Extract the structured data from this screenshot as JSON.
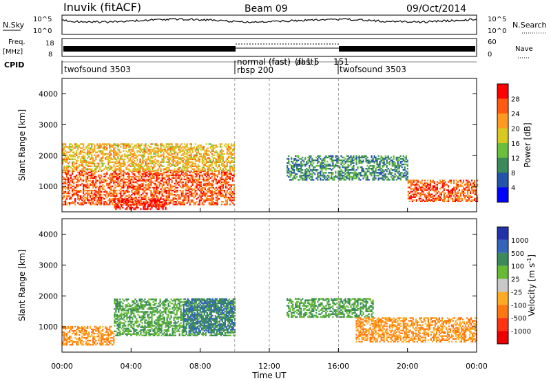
{
  "header": {
    "station": "Inuvik (fitACF)",
    "beam": "Beam 09",
    "date": "09/Oct/2014"
  },
  "top_panels": {
    "noise": {
      "left_label": "N.Sky",
      "right_label": "N.Search",
      "ticks": [
        "10^5",
        "10^0"
      ]
    },
    "freq": {
      "left_label": "Freq.",
      "unit": "[MHz]",
      "left_ticks": [
        "18",
        "8"
      ],
      "right_label": "Nave",
      "right_ticks": [
        "60",
        "0"
      ]
    },
    "cpid": {
      "label": "CPID",
      "segments": [
        "twofsound 3503",
        "normal (fast)",
        "rbsp 200",
        "(fast)",
        "al 1 5",
        "(fast)",
        "151",
        "twofsound 3503"
      ]
    }
  },
  "x_axis": {
    "label": "Time UT",
    "ticks": [
      "00:00",
      "04:00",
      "08:00",
      "12:00",
      "16:00",
      "20:00",
      "00:00"
    ]
  },
  "power_panel": {
    "ylabel": "Slant Range [km]",
    "yticks": [
      "1000",
      "2000",
      "3000",
      "4000"
    ],
    "colorbar_title": "Power [dB]",
    "colorbar_ticks": [
      "4",
      "8",
      "12",
      "16",
      "20",
      "24",
      "28"
    ],
    "colors": [
      "#0000ff",
      "#2255aa",
      "#3a8a5a",
      "#6bbf3a",
      "#d8c820",
      "#ff9a20",
      "#ff5a10",
      "#ff0000"
    ]
  },
  "velocity_panel": {
    "ylabel": "Slant Range [km]",
    "yticks": [
      "1000",
      "2000",
      "3000",
      "4000"
    ],
    "colorbar_title": "Velocity [m s",
    "colorbar_exp": "-1",
    "colorbar_close": "]",
    "colorbar_ticks": [
      "1000",
      "500",
      "100",
      "25",
      "-25",
      "-100",
      "-500",
      "-1000"
    ],
    "colors": [
      "#2233aa",
      "#3366bb",
      "#3a8a5a",
      "#66bb33",
      "#c8c8c8",
      "#ffaa22",
      "#ff7711",
      "#ff3311",
      "#ee0000"
    ]
  },
  "chart_data": {
    "type": "heatmap",
    "x_range_hours": [
      0,
      24
    ],
    "y_range_km": [
      180,
      4500
    ],
    "mode_change_hours": [
      10,
      12,
      16
    ],
    "power_bands_db": [
      {
        "t0": 0,
        "t1": 10,
        "r_lo": 400,
        "r_hi": 1500,
        "value": 26
      },
      {
        "t0": 3,
        "t1": 6,
        "r_lo": 250,
        "r_hi": 600,
        "value": 30
      },
      {
        "t0": 0,
        "t1": 10,
        "r_lo": 1500,
        "r_hi": 2400,
        "value": 20
      },
      {
        "t0": 13,
        "t1": 20,
        "r_lo": 1200,
        "r_hi": 2000,
        "value": 10
      },
      {
        "t0": 20,
        "t1": 24,
        "r_lo": 500,
        "r_hi": 1200,
        "value": 26
      }
    ],
    "velocity_bands_ms": [
      {
        "t0": 3,
        "t1": 10,
        "r_lo": 700,
        "r_hi": 1900,
        "value": 100
      },
      {
        "t0": 7,
        "t1": 10,
        "r_lo": 800,
        "r_hi": 1900,
        "value": 500
      },
      {
        "t0": 0,
        "t1": 3,
        "r_lo": 400,
        "r_hi": 1000,
        "value": -100
      },
      {
        "t0": 13,
        "t1": 18,
        "r_lo": 1300,
        "r_hi": 1900,
        "value": 100
      },
      {
        "t0": 17,
        "t1": 24,
        "r_lo": 500,
        "r_hi": 1300,
        "value": -100
      }
    ]
  }
}
